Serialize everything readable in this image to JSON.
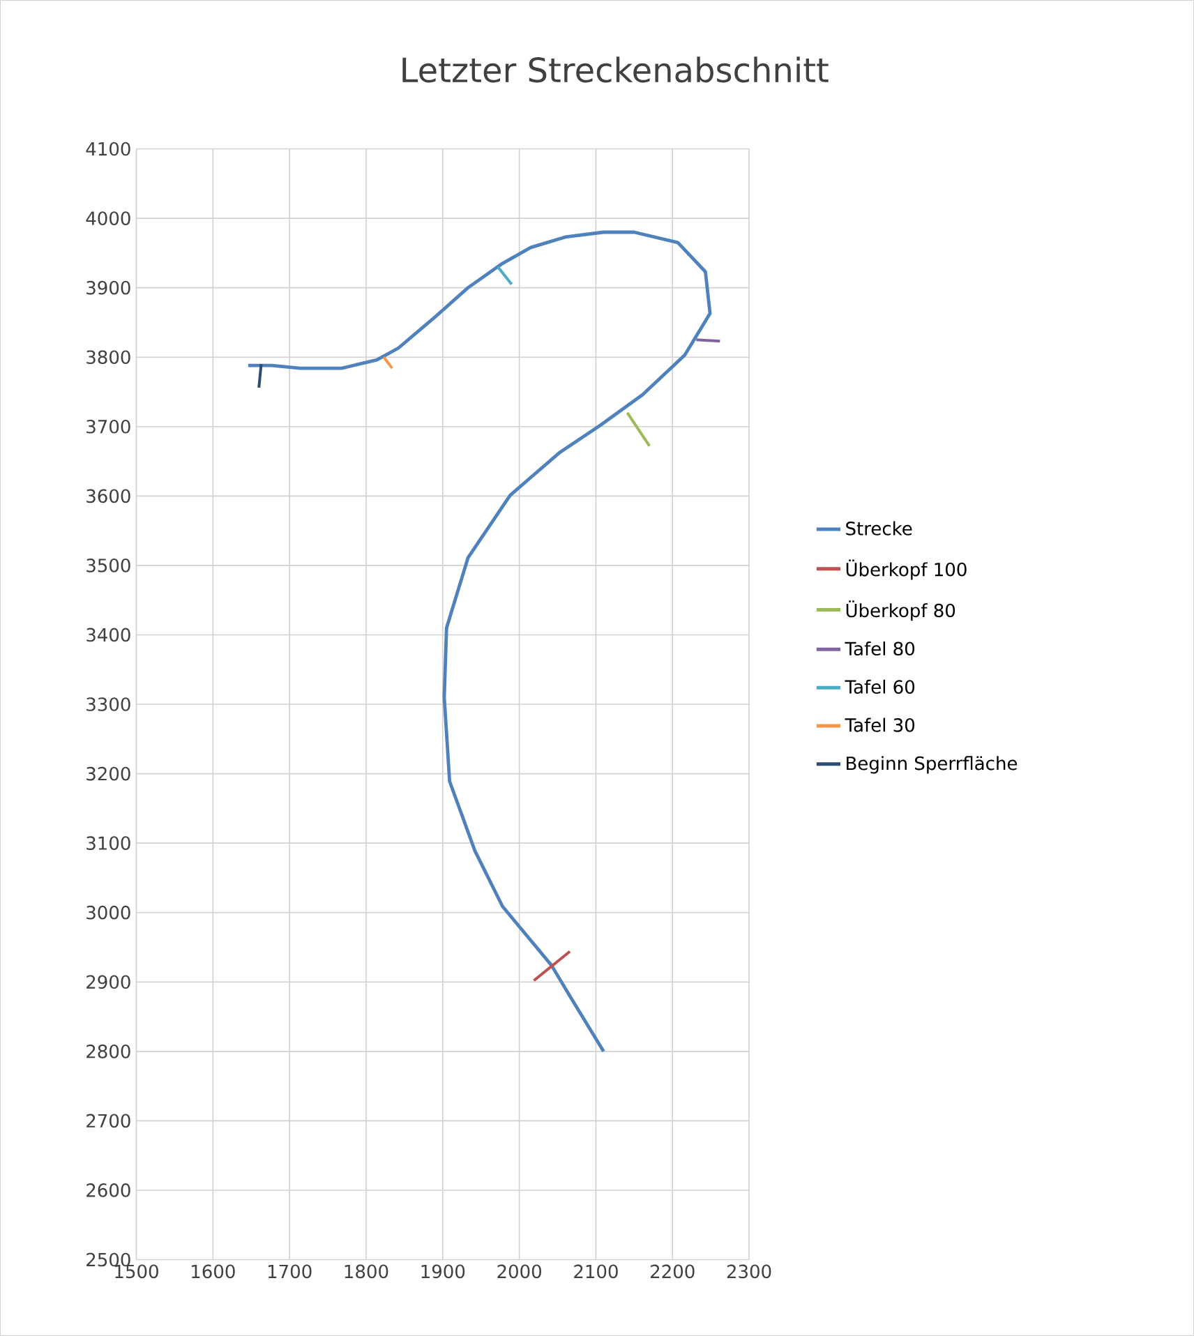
{
  "chart_data": {
    "type": "line",
    "title": "Letzter Streckenabschnitt",
    "xlim": [
      1500,
      2300
    ],
    "xticks": [
      1500,
      1600,
      1700,
      1800,
      1900,
      2000,
      2100,
      2200,
      2300
    ],
    "ylim": [
      2500,
      4100
    ],
    "yticks": [
      2500,
      2600,
      2700,
      2800,
      2900,
      3000,
      3100,
      3200,
      3300,
      3400,
      3500,
      3600,
      3700,
      3800,
      3900,
      4000,
      4100
    ],
    "grid": true,
    "legend": "right",
    "marker": "none",
    "line_style": "solid",
    "series": [
      {
        "name": "Strecke",
        "color": "#4f81bd",
        "x": [
          2110,
          2067,
          2042,
          1978,
          1942,
          1909,
          1902,
          1905,
          1933,
          1988,
          2052,
          2106,
          2161,
          2216,
          2249,
          2243,
          2207,
          2150,
          2110,
          2060,
          2015,
          1978,
          1933,
          1887,
          1842,
          1814,
          1768,
          1714,
          1677,
          1646
        ],
        "values": [
          2800,
          2878,
          2924,
          3009,
          3089,
          3189,
          3310,
          3410,
          3511,
          3601,
          3662,
          3702,
          3746,
          3803,
          3863,
          3923,
          3965,
          3980,
          3980,
          3973,
          3958,
          3935,
          3900,
          3855,
          3813,
          3796,
          3784,
          3784,
          3788,
          3788
        ]
      },
      {
        "name": "Überkopf 100",
        "color": "#c0504d",
        "x": [
          2019,
          2066
        ],
        "values": [
          2902,
          2944
        ]
      },
      {
        "name": "Überkopf 80",
        "color": "#9bbb59",
        "x": [
          2141,
          2170
        ],
        "values": [
          3720,
          3672
        ]
      },
      {
        "name": "Tafel 80",
        "color": "#8064a2",
        "x": [
          2231,
          2262
        ],
        "values": [
          3825,
          3823
        ]
      },
      {
        "name": "Tafel 60",
        "color": "#4bacc6",
        "x": [
          1972,
          1990
        ],
        "values": [
          3930,
          3905
        ]
      },
      {
        "name": "Tafel 30",
        "color": "#f79646",
        "x": [
          1823,
          1834
        ],
        "values": [
          3800,
          3784
        ]
      },
      {
        "name": "Beginn Sperrfläche",
        "color": "#2c4d75",
        "x": [
          1663,
          1660
        ],
        "values": [
          3790,
          3756
        ]
      }
    ]
  }
}
